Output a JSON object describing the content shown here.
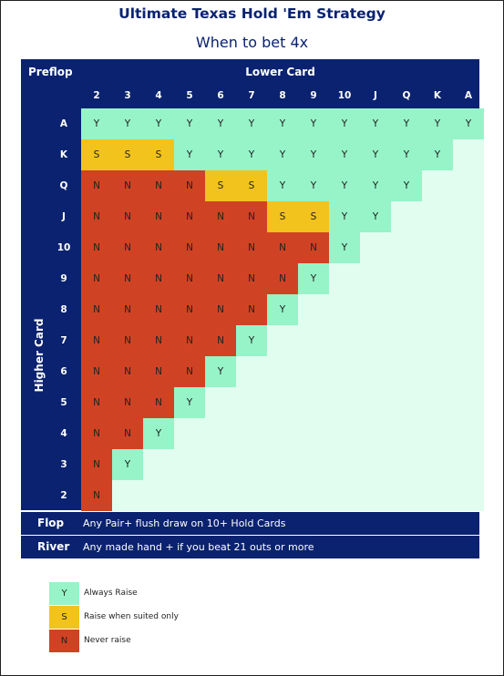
{
  "title": "Ultimate Texas Hold 'Em Strategy",
  "subtitle": "When to bet 4x",
  "preflop_label": "Preflop",
  "lower_card_label": "Lower Card",
  "higher_card_label": "Higher Card",
  "columns": [
    "2",
    "3",
    "4",
    "5",
    "6",
    "7",
    "8",
    "9",
    "10",
    "J",
    "Q",
    "K",
    "A"
  ],
  "rows": [
    {
      "label": "A",
      "cells": [
        "Y",
        "Y",
        "Y",
        "Y",
        "Y",
        "Y",
        "Y",
        "Y",
        "Y",
        "Y",
        "Y",
        "Y",
        "Y"
      ]
    },
    {
      "label": "K",
      "cells": [
        "S",
        "S",
        "S",
        "Y",
        "Y",
        "Y",
        "Y",
        "Y",
        "Y",
        "Y",
        "Y",
        "Y",
        ""
      ]
    },
    {
      "label": "Q",
      "cells": [
        "N",
        "N",
        "N",
        "N",
        "S",
        "S",
        "Y",
        "Y",
        "Y",
        "Y",
        "Y",
        "",
        ""
      ]
    },
    {
      "label": "J",
      "cells": [
        "N",
        "N",
        "N",
        "N",
        "N",
        "N",
        "S",
        "S",
        "Y",
        "Y",
        "",
        "",
        ""
      ]
    },
    {
      "label": "10",
      "cells": [
        "N",
        "N",
        "N",
        "N",
        "N",
        "N",
        "N",
        "N",
        "Y",
        "",
        "",
        "",
        ""
      ]
    },
    {
      "label": "9",
      "cells": [
        "N",
        "N",
        "N",
        "N",
        "N",
        "N",
        "N",
        "Y",
        "",
        "",
        "",
        "",
        ""
      ]
    },
    {
      "label": "8",
      "cells": [
        "N",
        "N",
        "N",
        "N",
        "N",
        "N",
        "Y",
        "",
        "",
        "",
        "",
        "",
        ""
      ]
    },
    {
      "label": "7",
      "cells": [
        "N",
        "N",
        "N",
        "N",
        "N",
        "Y",
        "",
        "",
        "",
        "",
        "",
        "",
        ""
      ]
    },
    {
      "label": "6",
      "cells": [
        "N",
        "N",
        "N",
        "N",
        "Y",
        "",
        "",
        "",
        "",
        "",
        "",
        "",
        ""
      ]
    },
    {
      "label": "5",
      "cells": [
        "N",
        "N",
        "N",
        "Y",
        "",
        "",
        "",
        "",
        "",
        "",
        "",
        "",
        ""
      ]
    },
    {
      "label": "4",
      "cells": [
        "N",
        "N",
        "Y",
        "",
        "",
        "",
        "",
        "",
        "",
        "",
        "",
        "",
        ""
      ]
    },
    {
      "label": "3",
      "cells": [
        "N",
        "Y",
        "",
        "",
        "",
        "",
        "",
        "",
        "",
        "",
        "",
        "",
        ""
      ]
    },
    {
      "label": "2",
      "cells": [
        "N",
        "",
        "",
        "",
        "",
        "",
        "",
        "",
        "",
        "",
        "",
        "",
        ""
      ]
    }
  ],
  "flop": {
    "label": "Flop",
    "text": "Any Pair+ flush draw on 10+ Hold Cards"
  },
  "river": {
    "label": "River",
    "text": "Any made hand + if you beat 21 outs or more"
  },
  "legend": [
    {
      "code": "Y",
      "text": "Always Raise",
      "color": "#96f4c8"
    },
    {
      "code": "S",
      "text": "Raise when suited only",
      "color": "#f2c31c"
    },
    {
      "code": "N",
      "text": "Never raise",
      "color": "#cf4324"
    }
  ],
  "colors": {
    "Y": "#96f4c8",
    "S": "#f2c31c",
    "N": "#cf4324",
    "empty": "#e0fdf0",
    "header": "#0a2270"
  }
}
